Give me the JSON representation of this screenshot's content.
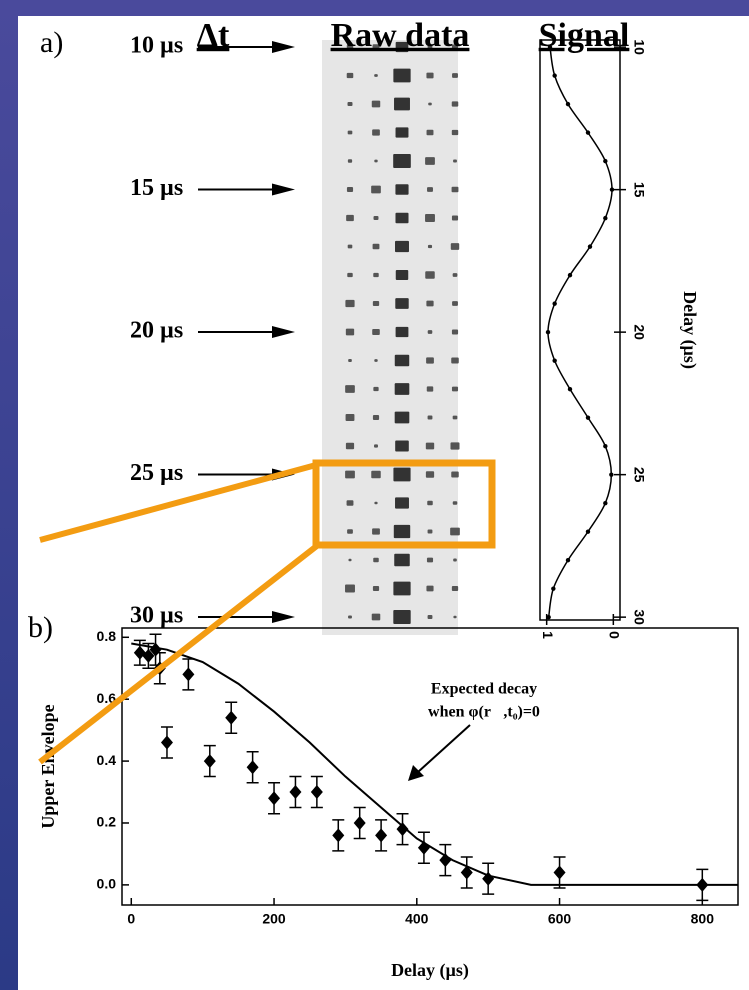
{
  "panel_labels": [
    "a)",
    "b)"
  ],
  "raw_data": {
    "delta_t_label": "Δt",
    "title": "Raw data",
    "time_labels": [
      "10 µs",
      "15 µs",
      "20 µs",
      "25 µs",
      "30 µs"
    ]
  },
  "chart_data": [
    {
      "type": "line",
      "title": "Signal",
      "x_label": "Delay  (µs)",
      "x": [
        10,
        11,
        12,
        13,
        14,
        15,
        16,
        17,
        18,
        19,
        20,
        21,
        22,
        23,
        24,
        25,
        26,
        27,
        28,
        29,
        30
      ],
      "values": [
        0.95,
        0.88,
        0.68,
        0.38,
        0.12,
        0.02,
        0.12,
        0.35,
        0.65,
        0.88,
        0.98,
        0.88,
        0.65,
        0.38,
        0.12,
        0.03,
        0.12,
        0.38,
        0.68,
        0.9,
        0.97
      ],
      "color": "#000000",
      "xlim": [
        9.75,
        30.1
      ],
      "xticks": [
        10,
        15,
        20,
        25,
        30
      ],
      "ylim": [
        1.1,
        -0.1
      ],
      "yticks": [
        1,
        0
      ]
    },
    {
      "type": "scatter",
      "x_label": "Delay  (µs)",
      "y_label": "Upper Envelope",
      "annotation": [
        "Expected decay",
        "when φ(r⃗,t₀)=0"
      ],
      "series": [
        {
          "type": "scatter",
          "color": "#000000",
          "x": [
            12,
            24,
            34,
            40,
            50,
            80,
            110,
            140,
            170,
            200,
            230,
            260,
            290,
            320,
            350,
            380,
            410,
            440,
            470,
            500,
            600,
            800
          ],
          "values": [
            0.75,
            0.74,
            0.76,
            0.7,
            0.46,
            0.68,
            0.4,
            0.54,
            0.38,
            0.28,
            0.3,
            0.3,
            0.16,
            0.2,
            0.16,
            0.18,
            0.12,
            0.08,
            0.04,
            0.02,
            0.04,
            0.0
          ],
          "errors": [
            0.04,
            0.04,
            0.05,
            0.05,
            0.05,
            0.05,
            0.05,
            0.05,
            0.05,
            0.05,
            0.05,
            0.05,
            0.05,
            0.05,
            0.05,
            0.05,
            0.05,
            0.05,
            0.05,
            0.05,
            0.05,
            0.05
          ]
        },
        {
          "type": "line",
          "color": "#000000",
          "x": [
            0,
            50,
            100,
            150,
            200,
            250,
            300,
            350,
            400,
            450,
            500,
            560,
            850
          ],
          "values": [
            0.78,
            0.76,
            0.72,
            0.65,
            0.56,
            0.46,
            0.35,
            0.25,
            0.15,
            0.08,
            0.03,
            0.0,
            0.0
          ]
        }
      ],
      "xlim": [
        -13,
        850
      ],
      "xticks": [
        0,
        200,
        400,
        600,
        800
      ],
      "ylim": [
        -0.065,
        0.83
      ],
      "yticks": [
        {
          "value": 0,
          "label": "0.0"
        },
        0.2,
        0.4,
        0.6,
        0.8
      ]
    }
  ]
}
